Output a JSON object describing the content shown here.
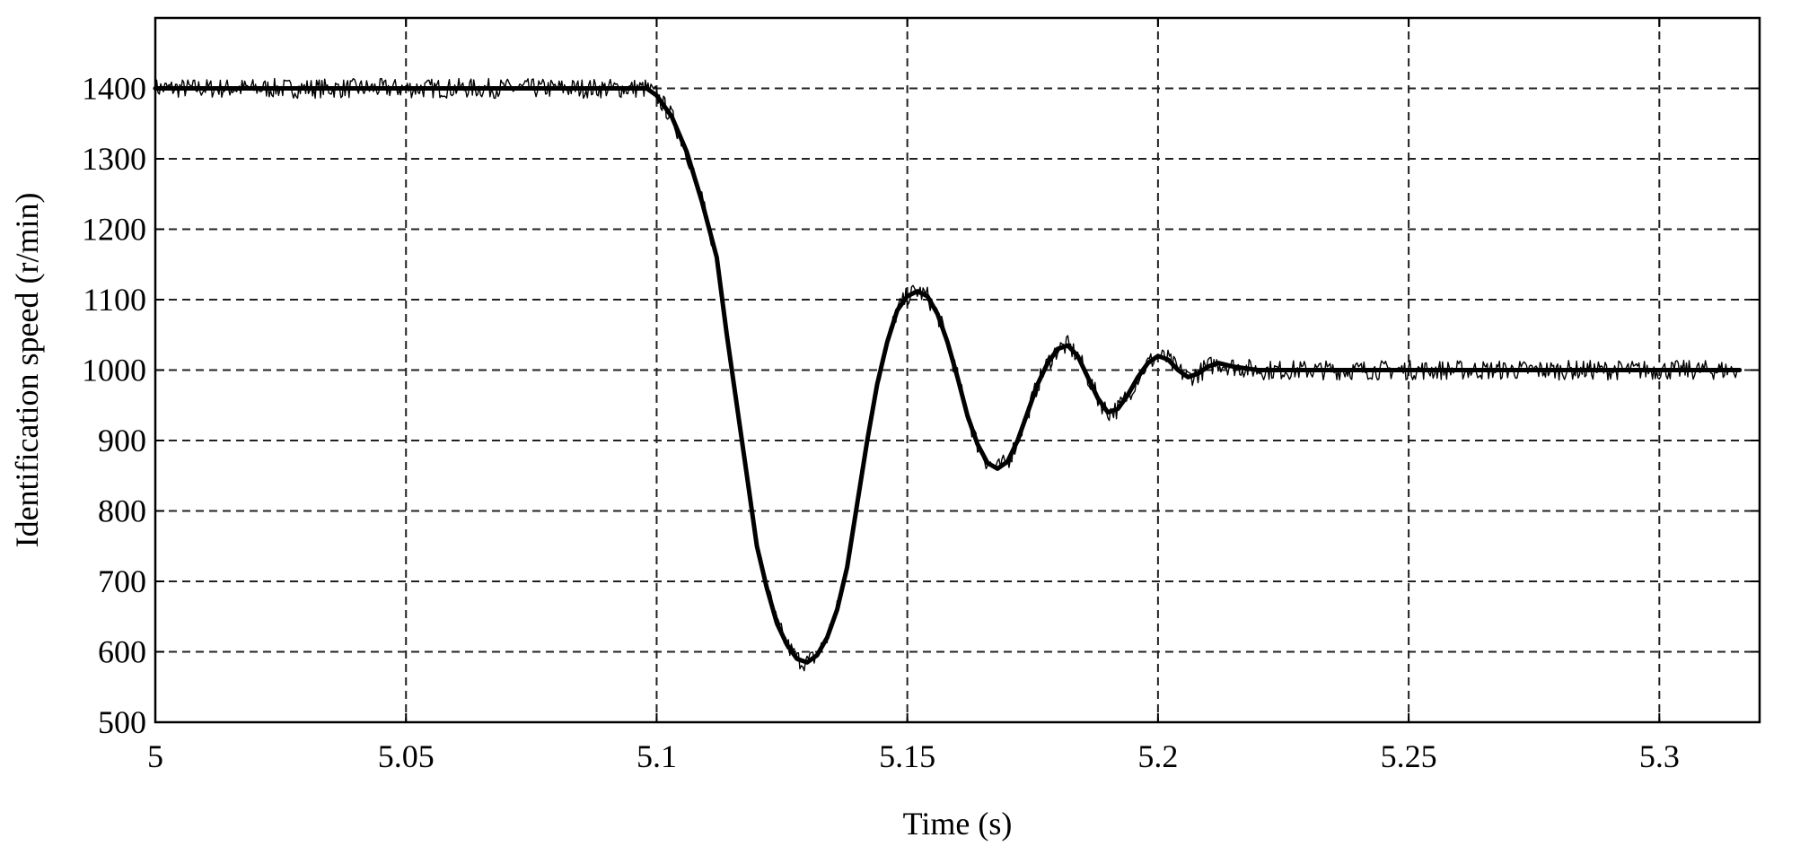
{
  "chart_data": {
    "type": "line",
    "title": "",
    "xlabel": "Time (s)",
    "ylabel": "Identification speed (r/min)",
    "xlim": [
      5,
      5.32
    ],
    "ylim": [
      500,
      1500
    ],
    "grid": true,
    "legend": "none",
    "x_ticks": [
      5,
      5.05,
      5.1,
      5.15,
      5.2,
      5.25,
      5.3
    ],
    "x_tick_labels": [
      "5",
      "5.05",
      "5.1",
      "5.15",
      "5.2",
      "5.25",
      "5.3"
    ],
    "y_ticks": [
      500,
      600,
      700,
      800,
      900,
      1000,
      1100,
      1200,
      1300,
      1400
    ],
    "y_tick_labels": [
      "500",
      "600",
      "700",
      "800",
      "900",
      "1000",
      "1100",
      "1200",
      "1300",
      "1400"
    ],
    "series": [
      {
        "color": "#000000",
        "x": [
          5.0,
          5.02,
          5.04,
          5.06,
          5.08,
          5.098,
          5.1,
          5.103,
          5.106,
          5.109,
          5.112,
          5.114,
          5.116,
          5.118,
          5.12,
          5.122,
          5.124,
          5.126,
          5.128,
          5.13,
          5.132,
          5.134,
          5.136,
          5.138,
          5.14,
          5.142,
          5.144,
          5.146,
          5.148,
          5.15,
          5.152,
          5.154,
          5.156,
          5.158,
          5.16,
          5.162,
          5.164,
          5.166,
          5.168,
          5.17,
          5.172,
          5.174,
          5.176,
          5.178,
          5.18,
          5.182,
          5.184,
          5.186,
          5.188,
          5.19,
          5.192,
          5.194,
          5.196,
          5.198,
          5.2,
          5.202,
          5.204,
          5.206,
          5.208,
          5.21,
          5.212,
          5.215,
          5.22,
          5.23,
          5.24,
          5.25,
          5.26,
          5.27,
          5.28,
          5.29,
          5.3,
          5.31,
          5.316
        ],
        "y": [
          1400,
          1400,
          1400,
          1400,
          1400,
          1400,
          1390,
          1360,
          1310,
          1240,
          1160,
          1050,
          950,
          850,
          750,
          690,
          640,
          610,
          590,
          585,
          595,
          620,
          660,
          720,
          810,
          900,
          980,
          1040,
          1085,
          1105,
          1112,
          1105,
          1080,
          1040,
          990,
          935,
          895,
          868,
          860,
          870,
          900,
          940,
          980,
          1010,
          1030,
          1035,
          1020,
          990,
          960,
          940,
          945,
          965,
          990,
          1010,
          1020,
          1015,
          1000,
          990,
          995,
          1005,
          1010,
          1005,
          1000,
          1000,
          1000,
          1000,
          1000,
          1000,
          1000,
          1000,
          1000,
          1000,
          1000
        ]
      }
    ]
  }
}
